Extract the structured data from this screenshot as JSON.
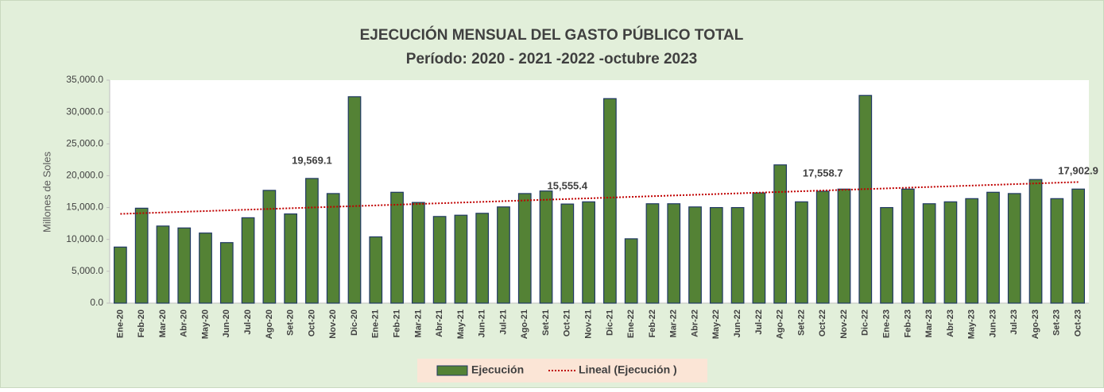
{
  "chart_data": {
    "type": "bar",
    "title": "EJECUCIÓN MENSUAL DEL GASTO PÚBLICO TOTAL",
    "subtitle": "Período: 2020 - 2021 -2022 -octubre 2023",
    "y_axis_label": "Millones de Soles",
    "categories": [
      "Ene-20",
      "Feb-20",
      "Mar-20",
      "Abr-20",
      "May-20",
      "Jun-20",
      "Jul-20",
      "Ago-20",
      "Set-20",
      "Oct-20",
      "Nov-20",
      "Dic-20",
      "Ene-21",
      "Feb-21",
      "Mar-21",
      "Abr-21",
      "May-21",
      "Jun-21",
      "Jul-21",
      "Ago-21",
      "Set-21",
      "Oct-21",
      "Nov-21",
      "Dic-21",
      "Ene-22",
      "Feb-22",
      "Mar-22",
      "Abr-22",
      "May-22",
      "Jun-22",
      "Jul-22",
      "Ago-22",
      "Set-22",
      "Oct-22",
      "Nov-22",
      "Dic-22",
      "Ene-23",
      "Feb-23",
      "Mar-23",
      "Abr-23",
      "May-23",
      "Jun-23",
      "Jul-23",
      "Ago-23",
      "Set-23",
      "Oct-23"
    ],
    "series": [
      {
        "name": "Ejecución",
        "color": "#548235",
        "values": [
          8800,
          14900,
          12100,
          11800,
          11000,
          9500,
          13400,
          17700,
          14000,
          19569.1,
          17200,
          32400,
          10400,
          17400,
          15800,
          13600,
          13800,
          14100,
          15100,
          17200,
          17600,
          15555.4,
          15900,
          32100,
          10100,
          15600,
          15600,
          15100,
          15000,
          15000,
          17300,
          21700,
          15900,
          17558.7,
          17900,
          32600,
          15000,
          17900,
          15600,
          15900,
          16400,
          17400,
          17200,
          19400,
          16400,
          17902.9
        ],
        "value_labels": [
          null,
          null,
          null,
          null,
          null,
          null,
          null,
          null,
          null,
          "19,569.1",
          null,
          null,
          null,
          null,
          null,
          null,
          null,
          null,
          null,
          null,
          null,
          "15,555.4",
          null,
          null,
          null,
          null,
          null,
          null,
          null,
          null,
          null,
          null,
          null,
          "17,558.7",
          null,
          null,
          null,
          null,
          null,
          null,
          null,
          null,
          null,
          null,
          null,
          "17,902.9"
        ]
      }
    ],
    "trendline": {
      "name": "Lineal (Ejecución )",
      "color": "#c00000"
    },
    "ylim": [
      0,
      35000
    ],
    "yticks": [
      {
        "value": 0,
        "label": "0.0"
      },
      {
        "value": 5000,
        "label": "5,000.0"
      },
      {
        "value": 10000,
        "label": "10,000.0"
      },
      {
        "value": 15000,
        "label": "15,000.0"
      },
      {
        "value": 20000,
        "label": "20,000.0"
      },
      {
        "value": 25000,
        "label": "25,000.0"
      },
      {
        "value": 30000,
        "label": "30,000.0"
      },
      {
        "value": 35000,
        "label": "35,000.0"
      }
    ]
  }
}
